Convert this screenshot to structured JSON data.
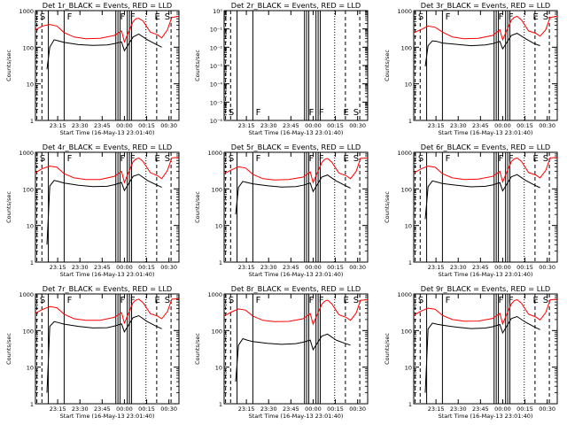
{
  "chart_data": [
    {
      "type": "line",
      "title": "Det 1r_BLACK = Events, RED = LLD",
      "ylabel": "Counts/sec",
      "xlabel": "Start Time (16-May-13 23:01:40)",
      "ylog": true,
      "ylim": [
        1,
        1000
      ],
      "yticks": [
        "1",
        "10",
        "100",
        "1000"
      ],
      "xtick_labels": [
        "23:15",
        "23:30",
        "23:45",
        "00:00",
        "00:15",
        "00:30"
      ],
      "markers": [
        "S",
        "F",
        "F",
        "F",
        "E",
        "S"
      ],
      "series": [
        {
          "color": "#ff0000",
          "x": [
            0,
            0.05,
            0.1,
            0.15,
            0.2,
            0.27,
            0.35,
            0.45,
            0.55,
            0.6,
            0.62,
            0.68,
            0.7,
            0.72,
            0.75,
            0.8,
            0.85,
            0.88,
            0.92,
            0.95,
            1.0
          ],
          "y": [
            300,
            380,
            420,
            380,
            250,
            190,
            170,
            175,
            210,
            280,
            140,
            500,
            600,
            620,
            520,
            260,
            220,
            180,
            300,
            650,
            700
          ]
        },
        {
          "color": "#000000",
          "x": [
            0.08,
            0.1,
            0.13,
            0.16,
            0.2,
            0.3,
            0.4,
            0.5,
            0.55,
            0.6,
            0.62,
            0.68,
            0.72,
            0.78,
            0.84,
            0.88
          ],
          "y": [
            25,
            100,
            160,
            150,
            135,
            118,
            112,
            115,
            125,
            140,
            80,
            190,
            230,
            160,
            120,
            100
          ]
        }
      ]
    },
    {
      "type": "line",
      "title": "Det 2r_BLACK = Events, RED = LLD",
      "ylabel": "Counts/sec",
      "xlabel": "Start Time (16-May-13 23:01:40)",
      "ylog": true,
      "ylim": [
        1e-06,
        1
      ],
      "yticks": [
        "10⁻⁶",
        "10⁻⁵",
        "10⁻⁴",
        "10⁻³",
        "10⁻²",
        "10⁻¹",
        "10⁰"
      ],
      "xtick_labels": [
        "23:15",
        "23:30",
        "23:45",
        "00:00",
        "00:15",
        "00:30"
      ],
      "markers": [
        "S",
        "F",
        "F",
        "F",
        "E",
        "S"
      ],
      "series": []
    },
    {
      "type": "line",
      "title": "Det 3r_BLACK = Events, RED = LLD",
      "ylabel": "Counts/sec",
      "xlabel": "Start Time (16-May-13 23:01:40)",
      "ylog": true,
      "ylim": [
        1,
        1000
      ],
      "yticks": [
        "1",
        "10",
        "100",
        "1000"
      ],
      "xtick_labels": [
        "23:15",
        "23:30",
        "23:45",
        "00:00",
        "00:15",
        "00:30"
      ],
      "markers": [
        "S",
        "F",
        "F",
        "F",
        "E",
        "S"
      ],
      "series": [
        {
          "color": "#ff0000",
          "x": [
            0,
            0.05,
            0.1,
            0.15,
            0.2,
            0.27,
            0.35,
            0.45,
            0.55,
            0.6,
            0.62,
            0.68,
            0.7,
            0.72,
            0.75,
            0.8,
            0.85,
            0.88,
            0.92,
            0.95,
            1.0
          ],
          "y": [
            250,
            300,
            380,
            350,
            260,
            190,
            170,
            175,
            210,
            300,
            160,
            550,
            650,
            700,
            560,
            280,
            240,
            200,
            300,
            650,
            700
          ]
        },
        {
          "color": "#000000",
          "x": [
            0.08,
            0.1,
            0.13,
            0.16,
            0.2,
            0.3,
            0.4,
            0.5,
            0.55,
            0.6,
            0.62,
            0.68,
            0.72,
            0.78,
            0.84,
            0.88
          ],
          "y": [
            30,
            110,
            150,
            145,
            130,
            120,
            110,
            115,
            125,
            145,
            90,
            210,
            240,
            170,
            125,
            110
          ]
        }
      ]
    },
    {
      "type": "line",
      "title": "Det 4r_BLACK = Events, RED = LLD",
      "ylabel": "Counts/sec",
      "xlabel": "Start Time (16-May-13 23:01:40)",
      "ylog": true,
      "ylim": [
        1,
        1000
      ],
      "yticks": [
        "1",
        "10",
        "100",
        "1000"
      ],
      "xtick_labels": [
        "23:15",
        "23:30",
        "23:45",
        "00:00",
        "00:15",
        "00:30"
      ],
      "markers": [
        "S",
        "F",
        "F",
        "F",
        "E",
        "S"
      ],
      "series": [
        {
          "color": "#ff0000",
          "x": [
            0,
            0.05,
            0.1,
            0.15,
            0.2,
            0.27,
            0.35,
            0.45,
            0.55,
            0.6,
            0.62,
            0.68,
            0.7,
            0.72,
            0.75,
            0.8,
            0.85,
            0.88,
            0.92,
            0.95,
            1.0
          ],
          "y": [
            280,
            360,
            420,
            390,
            260,
            200,
            180,
            180,
            220,
            300,
            150,
            550,
            650,
            700,
            560,
            280,
            230,
            190,
            320,
            700,
            720
          ]
        },
        {
          "color": "#000000",
          "x": [
            0.08,
            0.1,
            0.13,
            0.16,
            0.2,
            0.3,
            0.4,
            0.5,
            0.55,
            0.6,
            0.62,
            0.68,
            0.72,
            0.78,
            0.84,
            0.88
          ],
          "y": [
            3,
            120,
            170,
            160,
            145,
            125,
            115,
            118,
            130,
            150,
            90,
            220,
            250,
            170,
            130,
            110
          ]
        }
      ]
    },
    {
      "type": "line",
      "title": "Det 5r_BLACK = Events, RED = LLD",
      "ylabel": "Counts/sec",
      "xlabel": "Start Time (16-May-13 23:01:40)",
      "ylog": true,
      "ylim": [
        1,
        1000
      ],
      "yticks": [
        "1",
        "10",
        "100",
        "1000"
      ],
      "xtick_labels": [
        "23:15",
        "23:30",
        "23:45",
        "00:00",
        "00:15",
        "00:30"
      ],
      "markers": [
        "S",
        "F",
        "F",
        "F",
        "E",
        "S"
      ],
      "series": [
        {
          "color": "#ff0000",
          "x": [
            0,
            0.05,
            0.1,
            0.15,
            0.2,
            0.27,
            0.35,
            0.45,
            0.55,
            0.6,
            0.62,
            0.68,
            0.7,
            0.72,
            0.75,
            0.8,
            0.85,
            0.88,
            0.92,
            0.95,
            1.0
          ],
          "y": [
            260,
            330,
            400,
            370,
            250,
            190,
            175,
            180,
            210,
            290,
            150,
            520,
            640,
            680,
            540,
            270,
            230,
            190,
            300,
            680,
            700
          ]
        },
        {
          "color": "#000000",
          "x": [
            0.08,
            0.1,
            0.13,
            0.16,
            0.2,
            0.3,
            0.4,
            0.5,
            0.55,
            0.6,
            0.62,
            0.68,
            0.72,
            0.78,
            0.84,
            0.88
          ],
          "y": [
            20,
            110,
            160,
            150,
            138,
            122,
            112,
            116,
            126,
            145,
            85,
            210,
            240,
            165,
            125,
            105
          ]
        }
      ]
    },
    {
      "type": "line",
      "title": "Det 6r_BLACK = Events, RED = LLD",
      "ylabel": "Counts/sec",
      "xlabel": "Start Time (16-May-13 23:01:40)",
      "ylog": true,
      "ylim": [
        1,
        1000
      ],
      "yticks": [
        "1",
        "10",
        "100",
        "1000"
      ],
      "xtick_labels": [
        "23:15",
        "23:30",
        "23:45",
        "00:00",
        "00:15",
        "00:30"
      ],
      "markers": [
        "S",
        "F",
        "F",
        "F",
        "E",
        "S"
      ],
      "series": [
        {
          "color": "#ff0000",
          "x": [
            0,
            0.05,
            0.1,
            0.15,
            0.2,
            0.27,
            0.35,
            0.45,
            0.55,
            0.6,
            0.62,
            0.68,
            0.7,
            0.72,
            0.75,
            0.8,
            0.85,
            0.88,
            0.92,
            0.95,
            1.0
          ],
          "y": [
            270,
            350,
            420,
            390,
            260,
            200,
            180,
            185,
            220,
            300,
            155,
            560,
            660,
            700,
            570,
            280,
            240,
            200,
            320,
            700,
            720
          ]
        },
        {
          "color": "#000000",
          "x": [
            0.08,
            0.1,
            0.13,
            0.16,
            0.2,
            0.3,
            0.4,
            0.5,
            0.55,
            0.6,
            0.62,
            0.68,
            0.72,
            0.78,
            0.84,
            0.88
          ],
          "y": [
            15,
            115,
            165,
            155,
            140,
            125,
            114,
            118,
            128,
            148,
            88,
            215,
            245,
            170,
            128,
            108
          ]
        }
      ]
    },
    {
      "type": "line",
      "title": "Det 7r_BLACK = Events, RED = LLD",
      "ylabel": "Counts/sec",
      "xlabel": "Start Time (16-May-13 23:01:40)",
      "ylog": true,
      "ylim": [
        1,
        1000
      ],
      "yticks": [
        "1",
        "10",
        "100",
        "1000"
      ],
      "xtick_labels": [
        "23:15",
        "23:30",
        "23:45",
        "00:00",
        "00:15",
        "00:30"
      ],
      "markers": [
        "S",
        "F",
        "F",
        "F",
        "E",
        "S"
      ],
      "series": [
        {
          "color": "#ff0000",
          "x": [
            0,
            0.05,
            0.1,
            0.15,
            0.2,
            0.27,
            0.35,
            0.45,
            0.55,
            0.6,
            0.62,
            0.68,
            0.7,
            0.72,
            0.75,
            0.8,
            0.85,
            0.88,
            0.92,
            0.95,
            1.0
          ],
          "y": [
            300,
            380,
            450,
            420,
            280,
            210,
            190,
            190,
            230,
            310,
            160,
            580,
            680,
            720,
            580,
            290,
            250,
            210,
            330,
            720,
            740
          ]
        },
        {
          "color": "#000000",
          "x": [
            0.08,
            0.1,
            0.13,
            0.16,
            0.2,
            0.3,
            0.4,
            0.5,
            0.55,
            0.6,
            0.62,
            0.68,
            0.72,
            0.78,
            0.84,
            0.88
          ],
          "y": [
            2,
            130,
            175,
            165,
            150,
            130,
            118,
            120,
            132,
            152,
            92,
            225,
            255,
            175,
            132,
            112
          ]
        }
      ]
    },
    {
      "type": "line",
      "title": "Det 8r_BLACK = Events, RED = LLD",
      "ylabel": "Counts/sec",
      "xlabel": "Start Time (16-May-13 23:01:40)",
      "ylog": true,
      "ylim": [
        1,
        1000
      ],
      "yticks": [
        "1",
        "10",
        "100",
        "1000"
      ],
      "xtick_labels": [
        "23:15",
        "23:30",
        "23:45",
        "00:00",
        "00:15",
        "00:30"
      ],
      "markers": [
        "S",
        "F",
        "F",
        "F",
        "E",
        "S"
      ],
      "series": [
        {
          "color": "#ff0000",
          "x": [
            0,
            0.05,
            0.1,
            0.15,
            0.2,
            0.27,
            0.35,
            0.45,
            0.55,
            0.6,
            0.62,
            0.68,
            0.7,
            0.72,
            0.75,
            0.8,
            0.85,
            0.88,
            0.92,
            0.95,
            1.0
          ],
          "y": [
            250,
            320,
            390,
            360,
            250,
            190,
            175,
            178,
            210,
            290,
            150,
            520,
            630,
            680,
            540,
            270,
            230,
            190,
            300,
            670,
            700
          ]
        },
        {
          "color": "#000000",
          "x": [
            0.08,
            0.1,
            0.13,
            0.16,
            0.2,
            0.3,
            0.4,
            0.5,
            0.55,
            0.6,
            0.62,
            0.68,
            0.72,
            0.78,
            0.84,
            0.88
          ],
          "y": [
            4,
            40,
            60,
            55,
            50,
            45,
            42,
            44,
            48,
            55,
            30,
            70,
            80,
            55,
            45,
            40
          ]
        }
      ]
    },
    {
      "type": "line",
      "title": "Det 9r_BLACK = Events, RED = LLD",
      "ylabel": "Counts/sec",
      "xlabel": "Start Time (16-May-13 23:01:40)",
      "ylog": true,
      "ylim": [
        1,
        1000
      ],
      "yticks": [
        "1",
        "10",
        "100",
        "1000"
      ],
      "xtick_labels": [
        "23:15",
        "23:30",
        "23:45",
        "00:00",
        "00:15",
        "00:30"
      ],
      "markers": [
        "S",
        "F",
        "F",
        "F",
        "E",
        "S"
      ],
      "series": [
        {
          "color": "#ff0000",
          "x": [
            0,
            0.05,
            0.1,
            0.15,
            0.2,
            0.27,
            0.35,
            0.45,
            0.55,
            0.6,
            0.62,
            0.68,
            0.7,
            0.72,
            0.75,
            0.8,
            0.85,
            0.88,
            0.92,
            0.95,
            1.0
          ],
          "y": [
            260,
            340,
            410,
            380,
            260,
            200,
            180,
            182,
            215,
            295,
            152,
            540,
            650,
            700,
            560,
            280,
            235,
            195,
            310,
            690,
            720
          ]
        },
        {
          "color": "#000000",
          "x": [
            0.08,
            0.1,
            0.13,
            0.16,
            0.2,
            0.3,
            0.4,
            0.5,
            0.55,
            0.6,
            0.62,
            0.68,
            0.72,
            0.78,
            0.84,
            0.88
          ],
          "y": [
            2,
            110,
            160,
            150,
            140,
            124,
            113,
            117,
            127,
            146,
            86,
            212,
            242,
            168,
            126,
            106
          ]
        }
      ]
    }
  ]
}
